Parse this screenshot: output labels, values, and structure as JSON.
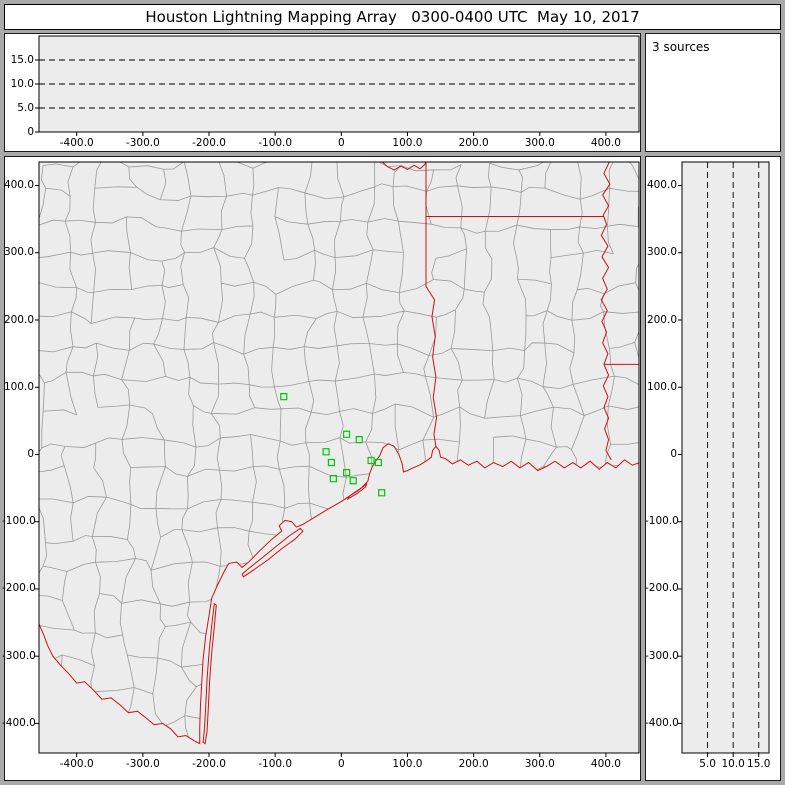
{
  "title": "Houston Lightning Mapping Array   0300-0400 UTC  May 10, 2017",
  "sources_label": "3 sources",
  "colors": {
    "frame_gray": "#a9a9a9",
    "panel_bg": "#ffffff",
    "plot_bg": "#ececec",
    "axis_text": "#000000",
    "dashed_grid": "#000000",
    "county_line": "#999999",
    "state_border": "#cc1111",
    "station_marker": "#00c800"
  },
  "chart_data": [
    {
      "id": "ew-altitude",
      "type": "scatter",
      "description": "Altitude (km) vs east-west distance (km); no lightning sources plotted this hour",
      "x_tick_values": [
        -400,
        -300,
        -200,
        -100,
        0,
        100,
        200,
        300,
        400
      ],
      "x_tick_labels": [
        "-400.0",
        "-300.0",
        "-200.0",
        "-100.0",
        "0",
        "100.0",
        "200.0",
        "300.0",
        "400.0"
      ],
      "y_tick_values": [
        15,
        10,
        5,
        0
      ],
      "y_tick_labels": [
        "15.0",
        "10.0",
        "5.0",
        "0"
      ],
      "xlim": [
        -457,
        450
      ],
      "ylim": [
        0,
        20
      ],
      "y_gridlines": [
        5,
        10,
        15
      ],
      "grid_style": "dashed",
      "points": []
    },
    {
      "id": "plan-view-map",
      "type": "scatter",
      "description": "Plan view map centered on Houston, distances in km; green open squares are HLMA stations",
      "x_tick_values": [
        -400,
        -300,
        -200,
        -100,
        0,
        100,
        200,
        300,
        400
      ],
      "x_tick_labels": [
        "-400.0",
        "-300.0",
        "-200.0",
        "-100.0",
        "0",
        "100.0",
        "200.0",
        "300.0",
        "400.0"
      ],
      "y_tick_values": [
        400,
        300,
        200,
        100,
        0,
        -100,
        -200,
        -300,
        -400
      ],
      "y_tick_labels": [
        "400.0",
        "300.0",
        "200.0",
        "100.0",
        "0",
        "-100.0",
        "-200.0",
        "-300.0",
        "-400.0"
      ],
      "xlim": [
        -457,
        450
      ],
      "ylim": [
        -444,
        435
      ],
      "stations_marker": "open-square",
      "stations_xy_km": [
        [
          -87,
          86
        ],
        [
          8,
          30
        ],
        [
          27,
          22
        ],
        [
          -23,
          4
        ],
        [
          -15,
          -12
        ],
        [
          8,
          -27
        ],
        [
          -12,
          -36
        ],
        [
          18,
          -39
        ],
        [
          45,
          -9
        ],
        [
          56,
          -12
        ],
        [
          61,
          -57
        ]
      ],
      "points": []
    },
    {
      "id": "ns-altitude",
      "type": "scatter",
      "description": "North-south distance (km) vs altitude (km); no lightning sources plotted this hour",
      "x_tick_values": [
        5,
        10,
        15
      ],
      "x_tick_labels": [
        "5.0",
        "10.0",
        "15.0"
      ],
      "y_tick_values": [
        400,
        300,
        200,
        100,
        0,
        -100,
        -200,
        -300,
        -400
      ],
      "y_tick_labels": [
        "400.0",
        "300.0",
        "200.0",
        "100.0",
        "0",
        "-100.0",
        "-200.0",
        "-300.0",
        "-400.0"
      ],
      "xlim": [
        0,
        17
      ],
      "ylim": [
        -444,
        435
      ],
      "x_gridlines": [
        5,
        10,
        15
      ],
      "grid_style": "dashed",
      "points": []
    }
  ]
}
